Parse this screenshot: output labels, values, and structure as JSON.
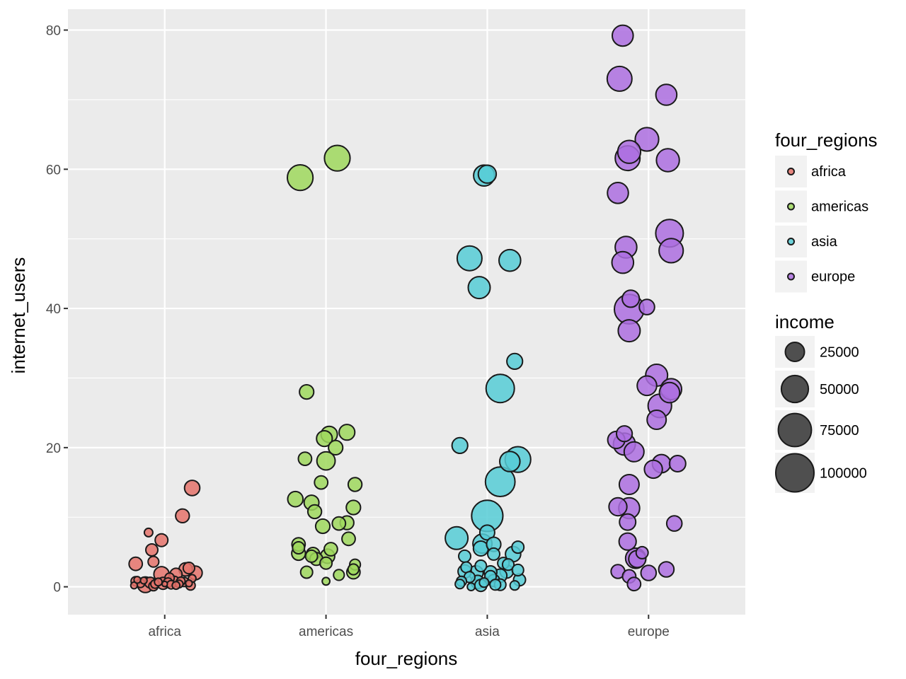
{
  "chart_data": {
    "type": "scatter",
    "xlabel": "four_regions",
    "ylabel": "internet_users",
    "categories": [
      "africa",
      "americas",
      "asia",
      "europe"
    ],
    "ylim": [
      -4,
      83
    ],
    "yticks": [
      "0",
      "20",
      "40",
      "60",
      "80"
    ],
    "grid": true,
    "colors": {
      "africa": "#e5736b",
      "americas": "#9fd85d",
      "asia": "#56ccd6",
      "europe": "#ad6fe0",
      "panel": "#ebebeb",
      "grid": "#ffffff"
    },
    "legend": {
      "position": "right",
      "color_title": "four_regions",
      "color_entries": [
        "africa",
        "americas",
        "asia",
        "europe"
      ],
      "size_title": "income",
      "size_entries": [
        "25000",
        "50000",
        "75000",
        "100000"
      ]
    },
    "series": [
      {
        "name": "africa",
        "points": [
          {
            "x": -0.18,
            "y": 3.3,
            "income": 12000
          },
          {
            "x": -0.1,
            "y": 7.8,
            "income": 5000
          },
          {
            "x": -0.08,
            "y": 5.3,
            "income": 10000
          },
          {
            "x": -0.07,
            "y": 3.6,
            "income": 8000
          },
          {
            "x": -0.02,
            "y": 6.7,
            "income": 11000
          },
          {
            "x": 0.11,
            "y": 10.2,
            "income": 13000
          },
          {
            "x": 0.17,
            "y": 14.2,
            "income": 16000
          },
          {
            "x": -0.02,
            "y": 1.8,
            "income": 16000
          },
          {
            "x": 0.07,
            "y": 1.8,
            "income": 10000
          },
          {
            "x": 0.13,
            "y": 2.5,
            "income": 12000
          },
          {
            "x": 0.15,
            "y": 2.7,
            "income": 9000
          },
          {
            "x": 0.19,
            "y": 2.0,
            "income": 13000
          },
          {
            "x": 0.03,
            "y": 1.3,
            "income": 6000
          },
          {
            "x": 0.17,
            "y": 1.2,
            "income": 4000
          },
          {
            "x": -0.18,
            "y": 0.8,
            "income": 6000
          },
          {
            "x": -0.15,
            "y": 0.5,
            "income": 5000
          },
          {
            "x": -0.12,
            "y": 0.3,
            "income": 17000
          },
          {
            "x": -0.09,
            "y": 0.6,
            "income": 8000
          },
          {
            "x": -0.06,
            "y": 0.4,
            "income": 5000
          },
          {
            "x": -0.04,
            "y": 0.7,
            "income": 4000
          },
          {
            "x": -0.01,
            "y": 0.5,
            "income": 10000
          },
          {
            "x": 0.02,
            "y": 0.6,
            "income": 6000
          },
          {
            "x": 0.04,
            "y": 0.3,
            "income": 5000
          },
          {
            "x": 0.06,
            "y": 0.8,
            "income": 7000
          },
          {
            "x": 0.09,
            "y": 0.4,
            "income": 4000
          },
          {
            "x": 0.12,
            "y": 0.7,
            "income": 6000
          },
          {
            "x": 0.15,
            "y": 0.5,
            "income": 3000
          },
          {
            "x": 0.16,
            "y": 0.2,
            "income": 6000
          },
          {
            "x": -0.19,
            "y": 0.2,
            "income": 3000
          },
          {
            "x": -0.13,
            "y": 0.9,
            "income": 3000
          },
          {
            "x": -0.07,
            "y": 0.1,
            "income": 6000
          },
          {
            "x": 0.0,
            "y": 0.4,
            "income": 2000
          },
          {
            "x": 0.07,
            "y": 0.2,
            "income": 4000
          },
          {
            "x": -0.17,
            "y": 1.0,
            "income": 3000
          },
          {
            "x": 0.1,
            "y": 0.8,
            "income": 5000
          }
        ]
      },
      {
        "name": "americas",
        "points": [
          {
            "x": -0.16,
            "y": 58.8,
            "income": 45000
          },
          {
            "x": 0.07,
            "y": 61.6,
            "income": 45000
          },
          {
            "x": -0.12,
            "y": 28.0,
            "income": 14000
          },
          {
            "x": 0.13,
            "y": 22.2,
            "income": 17000
          },
          {
            "x": 0.02,
            "y": 21.9,
            "income": 18000
          },
          {
            "x": -0.01,
            "y": 21.3,
            "income": 17000
          },
          {
            "x": 0.06,
            "y": 20.0,
            "income": 14000
          },
          {
            "x": -0.13,
            "y": 18.4,
            "income": 12000
          },
          {
            "x": 0.0,
            "y": 18.1,
            "income": 23000
          },
          {
            "x": -0.03,
            "y": 15.0,
            "income": 12000
          },
          {
            "x": 0.18,
            "y": 14.7,
            "income": 13000
          },
          {
            "x": -0.19,
            "y": 12.6,
            "income": 16000
          },
          {
            "x": -0.09,
            "y": 12.1,
            "income": 15000
          },
          {
            "x": 0.17,
            "y": 11.4,
            "income": 14000
          },
          {
            "x": -0.07,
            "y": 10.8,
            "income": 13000
          },
          {
            "x": 0.13,
            "y": 9.2,
            "income": 13000
          },
          {
            "x": 0.08,
            "y": 9.1,
            "income": 12000
          },
          {
            "x": -0.02,
            "y": 8.7,
            "income": 14000
          },
          {
            "x": 0.14,
            "y": 6.9,
            "income": 12000
          },
          {
            "x": -0.17,
            "y": 6.1,
            "income": 12000
          },
          {
            "x": -0.17,
            "y": 5.6,
            "income": 10000
          },
          {
            "x": 0.03,
            "y": 5.4,
            "income": 12000
          },
          {
            "x": -0.08,
            "y": 4.7,
            "income": 12000
          },
          {
            "x": -0.17,
            "y": 4.8,
            "income": 13000
          },
          {
            "x": -0.09,
            "y": 4.4,
            "income": 10000
          },
          {
            "x": 0.01,
            "y": 4.4,
            "income": 14000
          },
          {
            "x": -0.06,
            "y": 4.0,
            "income": 11000
          },
          {
            "x": 0.0,
            "y": 3.4,
            "income": 10000
          },
          {
            "x": 0.18,
            "y": 3.2,
            "income": 8000
          },
          {
            "x": 0.17,
            "y": 2.5,
            "income": 8000
          },
          {
            "x": -0.12,
            "y": 2.1,
            "income": 10000
          },
          {
            "x": 0.17,
            "y": 2.1,
            "income": 12000
          },
          {
            "x": 0.08,
            "y": 1.7,
            "income": 8000
          },
          {
            "x": 0.0,
            "y": 0.8,
            "income": 4000
          }
        ]
      },
      {
        "name": "asia",
        "points": [
          {
            "x": -0.02,
            "y": 59.1,
            "income": 30000
          },
          {
            "x": 0.0,
            "y": 59.3,
            "income": 22000
          },
          {
            "x": -0.11,
            "y": 47.2,
            "income": 42000
          },
          {
            "x": 0.14,
            "y": 46.9,
            "income": 32000
          },
          {
            "x": -0.05,
            "y": 43.0,
            "income": 33000
          },
          {
            "x": 0.17,
            "y": 32.4,
            "income": 17000
          },
          {
            "x": 0.08,
            "y": 28.5,
            "income": 55000
          },
          {
            "x": -0.17,
            "y": 20.3,
            "income": 17000
          },
          {
            "x": 0.19,
            "y": 18.3,
            "income": 45000
          },
          {
            "x": 0.14,
            "y": 18.0,
            "income": 28000
          },
          {
            "x": 0.08,
            "y": 15.1,
            "income": 60000
          },
          {
            "x": 0.0,
            "y": 10.2,
            "income": 67000
          },
          {
            "x": -0.19,
            "y": 7.0,
            "income": 35000
          },
          {
            "x": 0.0,
            "y": 7.8,
            "income": 15000
          },
          {
            "x": -0.03,
            "y": 6.2,
            "income": 25000
          },
          {
            "x": 0.04,
            "y": 6.1,
            "income": 14000
          },
          {
            "x": -0.04,
            "y": 5.5,
            "income": 15000
          },
          {
            "x": 0.19,
            "y": 5.7,
            "income": 10000
          },
          {
            "x": 0.16,
            "y": 4.7,
            "income": 16000
          },
          {
            "x": -0.14,
            "y": 4.4,
            "income": 10000
          },
          {
            "x": 0.04,
            "y": 4.7,
            "income": 10000
          },
          {
            "x": 0.1,
            "y": 3.4,
            "income": 9000
          },
          {
            "x": 0.13,
            "y": 3.2,
            "income": 9000
          },
          {
            "x": -0.13,
            "y": 2.8,
            "income": 8000
          },
          {
            "x": -0.04,
            "y": 3.0,
            "income": 9000
          },
          {
            "x": -0.14,
            "y": 2.2,
            "income": 12000
          },
          {
            "x": -0.07,
            "y": 2.0,
            "income": 14000
          },
          {
            "x": 0.02,
            "y": 2.1,
            "income": 11000
          },
          {
            "x": 0.12,
            "y": 2.2,
            "income": 12000
          },
          {
            "x": 0.19,
            "y": 2.4,
            "income": 9000
          },
          {
            "x": -0.11,
            "y": 1.4,
            "income": 8000
          },
          {
            "x": 0.02,
            "y": 1.5,
            "income": 9000
          },
          {
            "x": 0.08,
            "y": 1.6,
            "income": 12000
          },
          {
            "x": -0.16,
            "y": 0.8,
            "income": 7000
          },
          {
            "x": -0.06,
            "y": 0.7,
            "income": 12000
          },
          {
            "x": 0.04,
            "y": 0.9,
            "income": 10000
          },
          {
            "x": 0.2,
            "y": 1.0,
            "income": 10000
          },
          {
            "x": -0.17,
            "y": 0.4,
            "income": 6000
          },
          {
            "x": -0.1,
            "y": 0.0,
            "income": 4000
          },
          {
            "x": -0.04,
            "y": 0.2,
            "income": 10000
          },
          {
            "x": 0.05,
            "y": 0.3,
            "income": 8000
          },
          {
            "x": 0.08,
            "y": 0.3,
            "income": 9000
          },
          {
            "x": 0.17,
            "y": 0.2,
            "income": 6000
          },
          {
            "x": -0.02,
            "y": 0.6,
            "income": 6000
          }
        ]
      },
      {
        "name": "europe",
        "points": [
          {
            "x": -0.16,
            "y": 79.2,
            "income": 30000
          },
          {
            "x": -0.18,
            "y": 73.0,
            "income": 42000
          },
          {
            "x": 0.11,
            "y": 70.7,
            "income": 30000
          },
          {
            "x": -0.01,
            "y": 64.3,
            "income": 38000
          },
          {
            "x": -0.12,
            "y": 62.5,
            "income": 36000
          },
          {
            "x": -0.13,
            "y": 61.6,
            "income": 42000
          },
          {
            "x": 0.12,
            "y": 61.3,
            "income": 36000
          },
          {
            "x": -0.19,
            "y": 56.6,
            "income": 30000
          },
          {
            "x": 0.13,
            "y": 50.8,
            "income": 52000
          },
          {
            "x": 0.14,
            "y": 48.3,
            "income": 40000
          },
          {
            "x": -0.14,
            "y": 48.8,
            "income": 32000
          },
          {
            "x": -0.16,
            "y": 46.6,
            "income": 32000
          },
          {
            "x": -0.11,
            "y": 41.4,
            "income": 20000
          },
          {
            "x": -0.12,
            "y": 39.9,
            "income": 60000
          },
          {
            "x": -0.01,
            "y": 40.2,
            "income": 16000
          },
          {
            "x": -0.12,
            "y": 36.8,
            "income": 33000
          },
          {
            "x": 0.05,
            "y": 30.4,
            "income": 33000
          },
          {
            "x": -0.01,
            "y": 28.9,
            "income": 26000
          },
          {
            "x": 0.14,
            "y": 28.4,
            "income": 30000
          },
          {
            "x": 0.13,
            "y": 27.9,
            "income": 28000
          },
          {
            "x": 0.07,
            "y": 26.0,
            "income": 38000
          },
          {
            "x": 0.05,
            "y": 24.0,
            "income": 25000
          },
          {
            "x": -0.15,
            "y": 22.0,
            "income": 17000
          },
          {
            "x": -0.2,
            "y": 21.1,
            "income": 20000
          },
          {
            "x": -0.15,
            "y": 20.5,
            "income": 33000
          },
          {
            "x": -0.09,
            "y": 19.4,
            "income": 27000
          },
          {
            "x": 0.08,
            "y": 17.7,
            "income": 23000
          },
          {
            "x": 0.18,
            "y": 17.7,
            "income": 18000
          },
          {
            "x": 0.03,
            "y": 16.9,
            "income": 22000
          },
          {
            "x": -0.12,
            "y": 14.7,
            "income": 27000
          },
          {
            "x": -0.19,
            "y": 11.5,
            "income": 22000
          },
          {
            "x": -0.12,
            "y": 11.3,
            "income": 30000
          },
          {
            "x": -0.13,
            "y": 9.3,
            "income": 18000
          },
          {
            "x": 0.16,
            "y": 9.1,
            "income": 16000
          },
          {
            "x": -0.13,
            "y": 6.5,
            "income": 20000
          },
          {
            "x": -0.04,
            "y": 4.9,
            "income": 10000
          },
          {
            "x": -0.08,
            "y": 4.1,
            "income": 28000
          },
          {
            "x": -0.07,
            "y": 4.0,
            "income": 20000
          },
          {
            "x": 0.11,
            "y": 2.5,
            "income": 16000
          },
          {
            "x": -0.19,
            "y": 2.2,
            "income": 13000
          },
          {
            "x": 0.0,
            "y": 2.0,
            "income": 16000
          },
          {
            "x": -0.12,
            "y": 1.5,
            "income": 12000
          },
          {
            "x": -0.09,
            "y": 0.4,
            "income": 12000
          }
        ]
      }
    ]
  }
}
